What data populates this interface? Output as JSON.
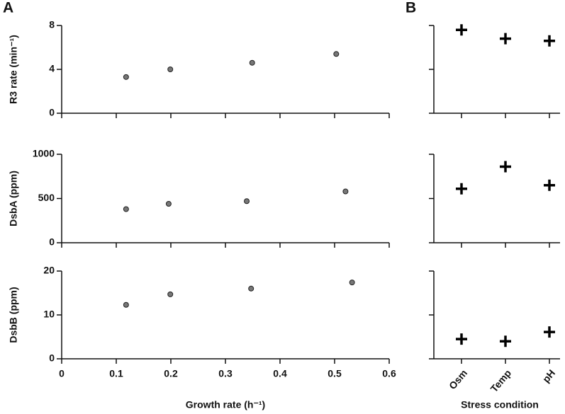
{
  "chart_data": [
    {
      "type": "scatter",
      "title": "A",
      "ylabel": "R3 rate (min⁻¹)",
      "x": [
        0.118,
        0.199,
        0.349,
        0.503
      ],
      "values": [
        3.3,
        4.0,
        4.6,
        5.4
      ],
      "color": "#777777",
      "ylim": [
        0,
        8
      ],
      "yticks": [
        0,
        4,
        8
      ]
    },
    {
      "type": "scatter",
      "ylabel": "DsbA (ppm)",
      "x": [
        0.118,
        0.196,
        0.339,
        0.52
      ],
      "values": [
        380,
        440,
        470,
        580
      ],
      "color": "#777777",
      "ylim": [
        0,
        1000
      ],
      "yticks": [
        0,
        500,
        1000
      ]
    },
    {
      "type": "scatter",
      "ylabel": "DsbB (ppm)",
      "xlabel": "Growth rate (h⁻¹)",
      "x": [
        0.118,
        0.199,
        0.347,
        0.532
      ],
      "values": [
        12.3,
        14.7,
        16.0,
        17.4
      ],
      "color": "#777777",
      "xlim": [
        0,
        0.6
      ],
      "xticks": [
        0,
        0.1,
        0.2,
        0.3,
        0.4,
        0.5,
        0.6
      ],
      "ylim": [
        0,
        20
      ],
      "yticks": [
        0,
        10,
        20
      ]
    },
    {
      "type": "strip",
      "title": "B",
      "values": [
        7.6,
        6.8,
        6.6
      ],
      "color": "#000000",
      "ylim": [
        0,
        8
      ],
      "yticks": [
        0,
        4,
        8
      ]
    },
    {
      "type": "strip",
      "values": [
        610,
        860,
        650
      ],
      "color": "#000000",
      "ylim": [
        0,
        1000
      ],
      "yticks": [
        0,
        500,
        1000
      ]
    },
    {
      "type": "strip",
      "xlabel": "Stress condition",
      "categories": [
        "Osm",
        "Temp",
        "pH"
      ],
      "values": [
        4.5,
        4.0,
        6.1
      ],
      "color": "#000000",
      "ylim": [
        0,
        20
      ],
      "yticks": [
        0,
        10,
        20
      ]
    }
  ]
}
